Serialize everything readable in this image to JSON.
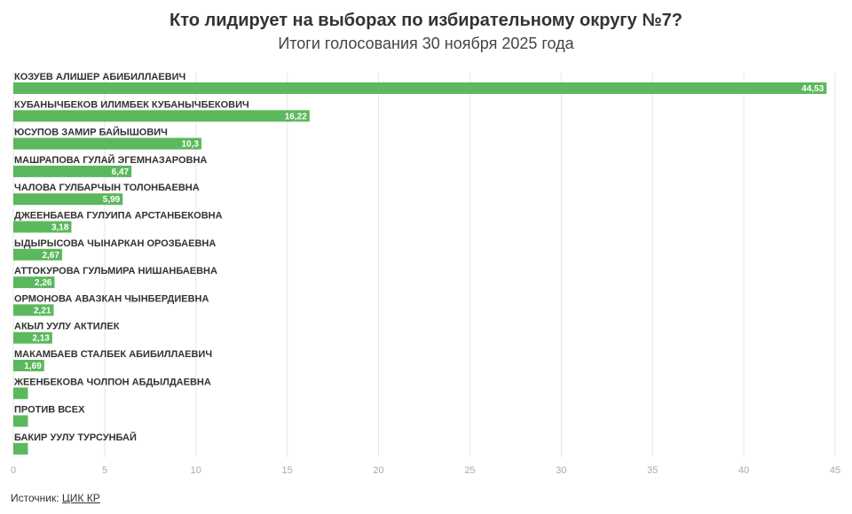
{
  "header": {
    "title": "Кто лидирует на выборах по избирательному округу №7?",
    "subtitle": "Итоги голосования 30 ноября 2025 года"
  },
  "source": {
    "label": "Источник:",
    "link_text": "ЦИК КР"
  },
  "colors": {
    "bar": "#5cb85c",
    "grid": "#e6e6e6",
    "axis_text": "#aaaaaa"
  },
  "chart_data": {
    "type": "bar",
    "orientation": "horizontal",
    "title": "Кто лидирует на выборах по избирательному округу №7?",
    "subtitle": "Итоги голосования 30 ноября 2025 года",
    "xlabel": "",
    "ylabel": "",
    "xlim": [
      0,
      45
    ],
    "xticks": [
      0,
      5,
      10,
      15,
      20,
      25,
      30,
      35,
      40,
      45
    ],
    "grid": true,
    "categories": [
      "КОЗУЕВ АЛИШЕР АБИБИЛЛАЕВИЧ",
      "КУБАНЫЧБЕКОВ ИЛИМБЕК КУБАНЫЧБЕКОВИЧ",
      "ЮСУПОВ ЗАМИР БАЙЫШОВИЧ",
      "МАШРАПОВА ГУЛАЙ ЭГЕМНАЗАРОВНА",
      "ЧАЛОВА ГУЛБАРЧЫН ТОЛОНБАЕВНА",
      "ДЖЕЕНБАЕВА ГУЛУИПА АРСТАНБЕКОВНА",
      "ЫДЫРЫСОВА ЧЫНАРКАН ОРОЗБАЕВНА",
      "АТТОКУРОВА ГУЛЬМИРА НИШАНБАЕВНА",
      "ОРМОНОВА АВАЗКАН ЧЫНБЕРДИЕВНА",
      "АКЫЛ УУЛУ АКТИЛЕК",
      "МАКАМБАЕВ СТАЛБЕК АБИБИЛЛАЕВИЧ",
      "ЖЕЕНБЕКОВА ЧОЛПОН АБДЫЛДАЕВНА",
      "ПРОТИВ ВСЕХ",
      "БАКИР УУЛУ ТУРСУНБАЙ"
    ],
    "values": [
      44.53,
      16.22,
      10.3,
      6.47,
      5.99,
      3.18,
      2.67,
      2.26,
      2.21,
      2.13,
      1.69,
      0.8,
      0.8,
      0.8
    ],
    "value_labels": [
      "44,53",
      "16,22",
      "10,3",
      "6,47",
      "5,99",
      "3,18",
      "2,67",
      "2,26",
      "2,21",
      "2,13",
      "1,69",
      "",
      "",
      ""
    ]
  }
}
